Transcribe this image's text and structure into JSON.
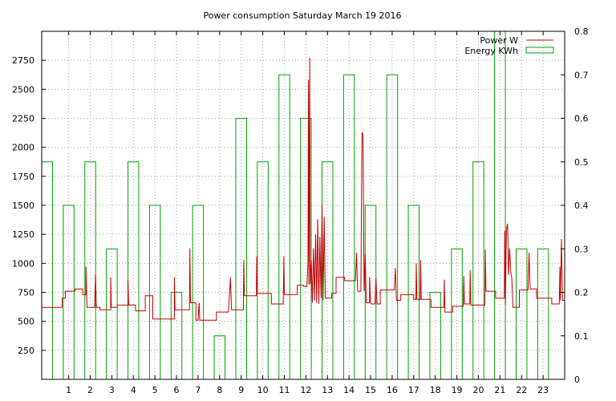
{
  "chart_data": {
    "type": "bar+line",
    "title": "Power consumption Saturday March 19 2016",
    "x_ticks": [
      "1",
      "2",
      "3",
      "4",
      "5",
      "6",
      "7",
      "8",
      "9",
      "10",
      "11",
      "12",
      "13",
      "14",
      "15",
      "16",
      "17",
      "18",
      "19",
      "20",
      "21",
      "22",
      "23"
    ],
    "xlim": [
      -0.25,
      24
    ],
    "y_left": {
      "ticks": [
        "250",
        "500",
        "750",
        "1000",
        "1250",
        "1500",
        "1750",
        "2000",
        "2250",
        "2500",
        "2750"
      ],
      "ylim": [
        0,
        3000
      ]
    },
    "y_right": {
      "ticks": [
        "0",
        "0.1",
        "0.2",
        "0.3",
        "0.4",
        "0.5",
        "0.6",
        "0.7",
        "0.8"
      ],
      "ylim": [
        0,
        0.8
      ]
    },
    "grid": true,
    "legend_position": "top-right",
    "series": [
      {
        "name": "Energy KWh",
        "type": "bar",
        "axis": "right",
        "color": "#00a000",
        "bar_width": 0.5,
        "x": [
          0,
          1,
          2,
          3,
          4,
          5,
          6,
          7,
          8,
          9,
          10,
          11,
          12,
          13,
          14,
          15,
          16,
          17,
          18,
          19,
          20,
          21,
          22,
          23
        ],
        "values": [
          0.5,
          0.4,
          0.5,
          0.3,
          0.5,
          0.4,
          0.2,
          0.4,
          0.1,
          0.6,
          0.5,
          0.7,
          0.6,
          0.5,
          0.7,
          0.4,
          0.7,
          0.4,
          0.2,
          0.3,
          0.5,
          0.8,
          0.3,
          0.3
        ]
      },
      {
        "name": "Power W",
        "type": "line",
        "axis": "left",
        "color": "#c00000",
        "points": [
          [
            -0.25,
            620
          ],
          [
            0.7,
            620
          ],
          [
            0.7,
            700
          ],
          [
            0.85,
            700
          ],
          [
            0.85,
            760
          ],
          [
            1.3,
            760
          ],
          [
            1.3,
            780
          ],
          [
            1.65,
            780
          ],
          [
            1.65,
            730
          ],
          [
            1.8,
            730
          ],
          [
            1.8,
            970
          ],
          [
            1.85,
            620
          ],
          [
            2.2,
            620
          ],
          [
            2.25,
            900
          ],
          [
            2.28,
            620
          ],
          [
            2.45,
            620
          ],
          [
            2.45,
            600
          ],
          [
            2.95,
            600
          ],
          [
            2.95,
            880
          ],
          [
            2.98,
            620
          ],
          [
            3.25,
            620
          ],
          [
            3.25,
            640
          ],
          [
            3.75,
            640
          ],
          [
            3.75,
            860
          ],
          [
            3.78,
            640
          ],
          [
            4.1,
            640
          ],
          [
            4.1,
            590
          ],
          [
            4.55,
            590
          ],
          [
            4.55,
            720
          ],
          [
            4.9,
            720
          ],
          [
            4.9,
            520
          ],
          [
            5.9,
            520
          ],
          [
            5.9,
            880
          ],
          [
            5.93,
            600
          ],
          [
            6.6,
            600
          ],
          [
            6.62,
            1130
          ],
          [
            6.65,
            660
          ],
          [
            6.9,
            660
          ],
          [
            6.9,
            510
          ],
          [
            7.0,
            510
          ],
          [
            7.05,
            660
          ],
          [
            7.08,
            510
          ],
          [
            7.85,
            510
          ],
          [
            7.85,
            580
          ],
          [
            8.4,
            580
          ],
          [
            8.45,
            700
          ],
          [
            8.5,
            880
          ],
          [
            8.55,
            600
          ],
          [
            9.1,
            600
          ],
          [
            9.12,
            1030
          ],
          [
            9.15,
            720
          ],
          [
            9.7,
            720
          ],
          [
            9.72,
            1060
          ],
          [
            9.75,
            740
          ],
          [
            10.4,
            740
          ],
          [
            10.4,
            650
          ],
          [
            10.95,
            650
          ],
          [
            10.98,
            1060
          ],
          [
            11.0,
            730
          ],
          [
            11.6,
            730
          ],
          [
            11.6,
            810
          ],
          [
            11.9,
            810
          ],
          [
            11.9,
            800
          ],
          [
            12.05,
            800
          ],
          [
            12.1,
            1020
          ],
          [
            12.12,
            2580
          ],
          [
            12.14,
            820
          ],
          [
            12.18,
            2770
          ],
          [
            12.2,
            820
          ],
          [
            12.25,
            1030
          ],
          [
            12.3,
            660
          ],
          [
            12.35,
            1130
          ],
          [
            12.4,
            680
          ],
          [
            12.45,
            1250
          ],
          [
            12.5,
            660
          ],
          [
            12.55,
            1380
          ],
          [
            12.6,
            650
          ],
          [
            12.65,
            1230
          ],
          [
            12.7,
            700
          ],
          [
            12.75,
            1500
          ],
          [
            12.8,
            680
          ],
          [
            12.85,
            1400
          ],
          [
            12.9,
            700
          ],
          [
            13.2,
            700
          ],
          [
            13.2,
            740
          ],
          [
            13.4,
            740
          ],
          [
            13.4,
            880
          ],
          [
            13.8,
            880
          ],
          [
            13.8,
            850
          ],
          [
            14.3,
            850
          ],
          [
            14.35,
            1090
          ],
          [
            14.4,
            760
          ],
          [
            14.55,
            760
          ],
          [
            14.6,
            2130
          ],
          [
            14.65,
            2100
          ],
          [
            14.7,
            760
          ],
          [
            14.75,
            1080
          ],
          [
            14.8,
            660
          ],
          [
            14.95,
            660
          ],
          [
            14.95,
            880
          ],
          [
            15.0,
            660
          ],
          [
            15.05,
            650
          ],
          [
            15.2,
            650
          ],
          [
            15.25,
            870
          ],
          [
            15.3,
            650
          ],
          [
            15.45,
            650
          ],
          [
            15.45,
            770
          ],
          [
            16.1,
            770
          ],
          [
            16.15,
            960
          ],
          [
            16.2,
            680
          ],
          [
            16.4,
            680
          ],
          [
            16.4,
            730
          ],
          [
            17.0,
            730
          ],
          [
            17.0,
            690
          ],
          [
            17.1,
            690
          ],
          [
            17.12,
            1000
          ],
          [
            17.15,
            690
          ],
          [
            17.3,
            690
          ],
          [
            17.32,
            1030
          ],
          [
            17.35,
            690
          ],
          [
            17.8,
            690
          ],
          [
            17.8,
            620
          ],
          [
            18.4,
            620
          ],
          [
            18.42,
            860
          ],
          [
            18.45,
            580
          ],
          [
            18.8,
            580
          ],
          [
            18.8,
            630
          ],
          [
            19.3,
            630
          ],
          [
            19.32,
            890
          ],
          [
            19.35,
            650
          ],
          [
            19.6,
            650
          ],
          [
            19.62,
            940
          ],
          [
            19.65,
            640
          ],
          [
            20.3,
            640
          ],
          [
            20.32,
            1120
          ],
          [
            20.35,
            760
          ],
          [
            20.8,
            760
          ],
          [
            20.8,
            700
          ],
          [
            21.2,
            700
          ],
          [
            21.22,
            1280
          ],
          [
            21.25,
            640
          ],
          [
            21.3,
            1290
          ],
          [
            21.35,
            1340
          ],
          [
            21.4,
            900
          ],
          [
            21.45,
            1130
          ],
          [
            21.5,
            930
          ],
          [
            21.55,
            870
          ],
          [
            21.6,
            620
          ],
          [
            21.9,
            620
          ],
          [
            21.9,
            770
          ],
          [
            22.3,
            770
          ],
          [
            22.35,
            1090
          ],
          [
            22.4,
            780
          ],
          [
            22.7,
            780
          ],
          [
            22.7,
            700
          ],
          [
            23.4,
            700
          ],
          [
            23.4,
            650
          ],
          [
            23.75,
            650
          ],
          [
            23.78,
            970
          ],
          [
            23.8,
            680
          ],
          [
            23.85,
            1210
          ],
          [
            23.9,
            680
          ],
          [
            24.0,
            680
          ]
        ]
      }
    ]
  }
}
